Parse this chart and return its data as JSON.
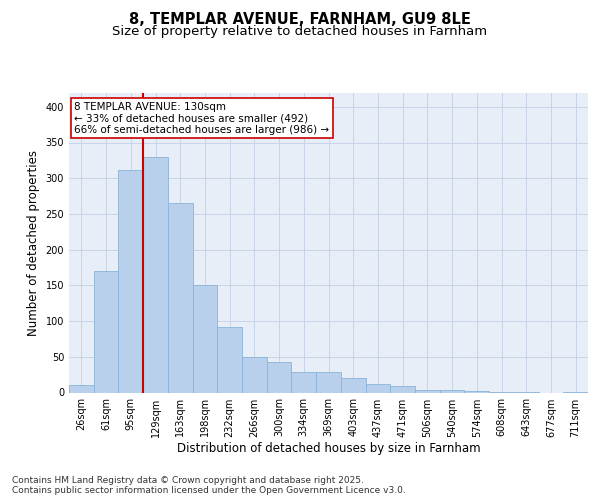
{
  "title1": "8, TEMPLAR AVENUE, FARNHAM, GU9 8LE",
  "title2": "Size of property relative to detached houses in Farnham",
  "xlabel": "Distribution of detached houses by size in Farnham",
  "ylabel": "Number of detached properties",
  "bar_labels": [
    "26sqm",
    "61sqm",
    "95sqm",
    "129sqm",
    "163sqm",
    "198sqm",
    "232sqm",
    "266sqm",
    "300sqm",
    "334sqm",
    "369sqm",
    "403sqm",
    "437sqm",
    "471sqm",
    "506sqm",
    "540sqm",
    "574sqm",
    "608sqm",
    "643sqm",
    "677sqm",
    "711sqm"
  ],
  "bar_values": [
    10,
    170,
    312,
    330,
    265,
    150,
    92,
    50,
    43,
    29,
    29,
    21,
    12,
    9,
    4,
    4,
    2,
    1,
    1,
    0,
    1
  ],
  "bar_color": "#b8d0eb",
  "bar_edgecolor": "#8ab4d8",
  "grid_color": "#c8d4e8",
  "background_color": "#e8eef8",
  "vline_color": "#cc0000",
  "vline_x_index": 3,
  "annotation_text": "8 TEMPLAR AVENUE: 130sqm\n← 33% of detached houses are smaller (492)\n66% of semi-detached houses are larger (986) →",
  "annotation_box_color": "#ffffff",
  "annotation_box_edgecolor": "#cc0000",
  "ylim": [
    0,
    420
  ],
  "yticks": [
    0,
    50,
    100,
    150,
    200,
    250,
    300,
    350,
    400
  ],
  "footer_text": "Contains HM Land Registry data © Crown copyright and database right 2025.\nContains public sector information licensed under the Open Government Licence v3.0.",
  "title1_fontsize": 10.5,
  "title2_fontsize": 9.5,
  "xlabel_fontsize": 8.5,
  "ylabel_fontsize": 8.5,
  "tick_fontsize": 7,
  "annot_fontsize": 7.5,
  "footer_fontsize": 6.5
}
